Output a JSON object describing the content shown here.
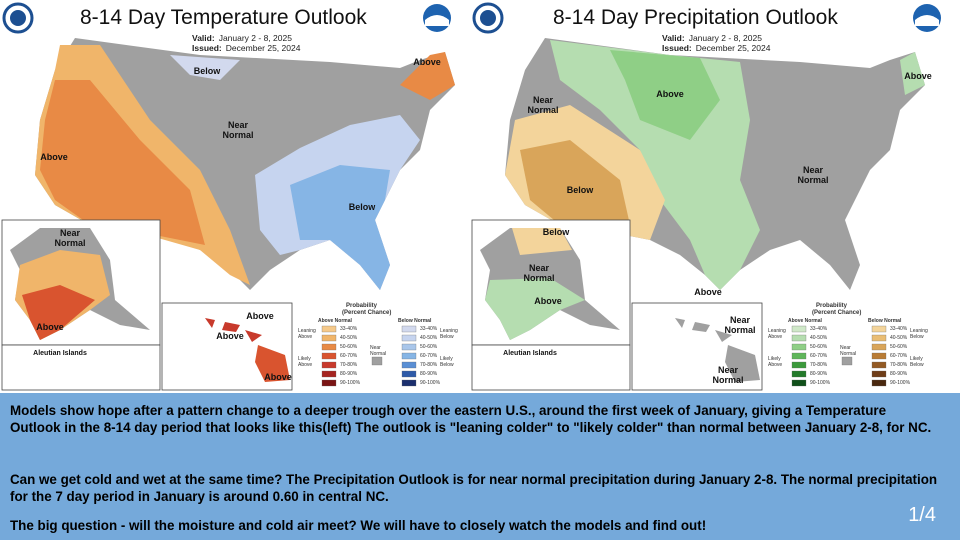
{
  "maps": [
    {
      "title": "8-14 Day Temperature Outlook",
      "valid_label": "Valid:",
      "valid": "January 2 - 8, 2025",
      "issued_label": "Issued:",
      "issued": "December 25, 2024",
      "labels": [
        "Below",
        "Above",
        "Near Normal",
        "Above",
        "Below",
        "Near Normal",
        "Above",
        "Above",
        "Above",
        "Above"
      ],
      "aleutian": "Aleutian Islands",
      "legend": {
        "title": "Probability",
        "subtitle": "(Percent Chance)",
        "left_header": "Above Normal",
        "right_header": "Below Normal",
        "left_groups": [
          "Leaning Above",
          "Likely Above"
        ],
        "right_groups": [
          "Leaning Below",
          "Likely Below"
        ],
        "middle": "Near Normal",
        "ranges": [
          "33-40%",
          "40-50%",
          "50-60%",
          "60-70%",
          "70-80%",
          "80-90%",
          "90-100%"
        ]
      }
    },
    {
      "title": "8-14 Day Precipitation Outlook",
      "valid_label": "Valid:",
      "valid": "January 2 - 8, 2025",
      "issued_label": "Issued:",
      "issued": "December 25, 2024",
      "labels": [
        "Above",
        "Above",
        "Near Normal",
        "Near Normal",
        "Below",
        "Above",
        "Below",
        "Near Normal",
        "Above",
        "Near Normal",
        "Near Normal"
      ],
      "aleutian": "Aleutian Islands",
      "legend": {
        "title": "Probability",
        "subtitle": "(Percent Chance)",
        "left_header": "Above Normal",
        "right_header": "Below Normal",
        "left_groups": [
          "Leaning Above",
          "Likely Above"
        ],
        "right_groups": [
          "Leaning Below",
          "Likely Below"
        ],
        "middle": "Near Normal",
        "ranges": [
          "33-40%",
          "40-50%",
          "50-60%",
          "60-70%",
          "70-80%",
          "80-90%",
          "90-100%"
        ]
      }
    }
  ],
  "text": {
    "paragraphs": [
      "Models show hope after a pattern change to a deeper trough over the eastern U.S., around the first week of January, giving a Temperature Outlook in the 8-14 day period that looks like this(left) The outlook is \"leaning colder\" to \"likely colder\"  than normal between January 2-8,  for NC.",
      "Can we get cold and wet at the same time? The Precipitation Outlook is for near normal precipitation during January 2-8. The normal precipitation for the 7 day period in January is around 0.60 in central NC.",
      "The big question - will the moisture and cold air meet? We will have to closely watch the models and find out!"
    ],
    "page": "1/4"
  }
}
